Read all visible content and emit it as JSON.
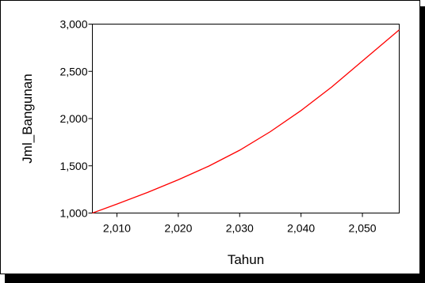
{
  "chart_data": {
    "type": "line",
    "title": "",
    "xlabel": "Tahun",
    "ylabel": "Jml_Bangunan",
    "xlim": [
      2006,
      2056
    ],
    "ylim": [
      1000,
      3000
    ],
    "xticks": [
      {
        "value": 2010,
        "label": "2,010"
      },
      {
        "value": 2020,
        "label": "2,020"
      },
      {
        "value": 2030,
        "label": "2,030"
      },
      {
        "value": 2040,
        "label": "2,040"
      },
      {
        "value": 2050,
        "label": "2,050"
      }
    ],
    "yticks": [
      {
        "value": 1000,
        "label": "1,000"
      },
      {
        "value": 1500,
        "label": "1,500"
      },
      {
        "value": 2000,
        "label": "2,000"
      },
      {
        "value": 2500,
        "label": "2,500"
      },
      {
        "value": 3000,
        "label": "3,000"
      }
    ],
    "grid": false,
    "legend": "none",
    "line_color": "#ff0000",
    "series": [
      {
        "x": [
          2006,
          2010,
          2015,
          2020,
          2025,
          2030,
          2035,
          2040,
          2045,
          2050,
          2056
        ],
        "values": [
          1000,
          1095,
          1218,
          1352,
          1498,
          1665,
          1862,
          2085,
          2335,
          2610,
          2940
        ]
      }
    ]
  }
}
